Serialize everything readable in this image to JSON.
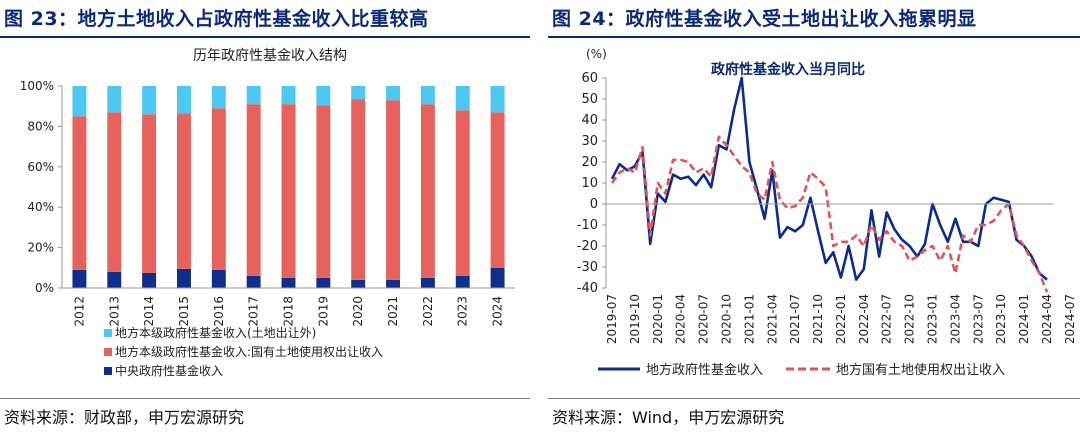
{
  "left": {
    "fig_title": "图 23：地方土地收入占政府性基金收入比重较高",
    "source": "资料来源：财政部，申万宏源研究"
  },
  "right": {
    "fig_title": "图 24：政府性基金收入受土地出让收入拖累明显",
    "source": "资料来源：Wind，申万宏源研究"
  },
  "colors": {
    "title": "#0a2a78",
    "central": "#0f2f8f",
    "land": "#e8625d",
    "other": "#4dc8f2",
    "line_solid": "#0e2c8e",
    "line_dash": "#e0545a"
  },
  "chart_data": [
    {
      "type": "bar",
      "stacked": true,
      "title": "历年政府性基金收入结构",
      "categories": [
        "2012",
        "2013",
        "2014",
        "2015",
        "2016",
        "2017",
        "2018",
        "2019",
        "2020",
        "2021",
        "2022",
        "2023",
        "2024"
      ],
      "series": [
        {
          "name": "中央政府性基金收入",
          "values": [
            9,
            8,
            7.5,
            9.5,
            9,
            6,
            5,
            5,
            4,
            4,
            5,
            6,
            10
          ]
        },
        {
          "name": "地方本级政府性基金收入:国有土地使用权出让收入",
          "values": [
            76,
            79,
            78.5,
            77,
            80,
            85,
            86,
            85.5,
            89.5,
            89,
            86,
            82,
            77
          ]
        },
        {
          "name": "地方本级政府性基金收入(土地出让外)",
          "values": [
            15,
            13,
            14,
            13.5,
            11,
            9,
            9,
            9.5,
            6.5,
            7,
            9,
            12,
            13
          ]
        }
      ],
      "y_ticks": [
        "0%",
        "20%",
        "40%",
        "60%",
        "80%",
        "100%"
      ],
      "ylim": [
        0,
        100
      ],
      "legend_order": [
        2,
        1,
        0
      ],
      "grid": false
    },
    {
      "type": "line",
      "title": "政府性基金收入当月同比",
      "ylabel": "(%)",
      "ylim": [
        -40,
        60
      ],
      "y_ticks": [
        60,
        50,
        40,
        30,
        20,
        10,
        0,
        -10,
        -20,
        -30,
        -40
      ],
      "x_labels": [
        "2019-07",
        "2019-10",
        "2020-01",
        "2020-04",
        "2020-07",
        "2020-10",
        "2021-01",
        "2021-04",
        "2021-07",
        "2021-10",
        "2022-01",
        "2022-04",
        "2022-07",
        "2022-10",
        "2023-01",
        "2023-04",
        "2023-07",
        "2023-10",
        "2024-01",
        "2024-04",
        "2024-07"
      ],
      "series": [
        {
          "name": "地方政府性基金收入",
          "style": "solid",
          "values": [
            12,
            19,
            16,
            18,
            25,
            -19,
            5,
            1,
            14,
            12,
            13,
            9,
            14,
            8,
            28,
            26,
            45,
            60,
            20,
            7,
            -7,
            16,
            -16,
            -11,
            -13,
            -10,
            3,
            -13,
            -28,
            -23,
            -35,
            -20,
            -36,
            -31,
            -3,
            -25,
            -4,
            -12,
            -17,
            -20,
            -25,
            -19,
            0,
            -10,
            -18,
            -7,
            -18,
            -18,
            -20,
            0,
            3,
            2,
            1,
            -17,
            -20,
            -25,
            -33,
            -36
          ]
        },
        {
          "name": "地方国有土地使用权出让收入",
          "style": "dashed",
          "values": [
            10,
            15,
            17,
            15,
            27,
            -15,
            10,
            5,
            21,
            21,
            20,
            15,
            17,
            13,
            32,
            28,
            23,
            18,
            15,
            5,
            2,
            20,
            2,
            -2,
            -1,
            3,
            15,
            12,
            8,
            -20,
            -18,
            -18,
            -15,
            -20,
            -10,
            -17,
            -13,
            -18,
            -20,
            -27,
            -25,
            -22,
            -20,
            -27,
            -20,
            -33,
            -15,
            -18,
            -10,
            -10,
            -8,
            -3,
            0,
            -15,
            -20,
            -27,
            -33,
            -42
          ]
        }
      ],
      "grid": false
    }
  ]
}
